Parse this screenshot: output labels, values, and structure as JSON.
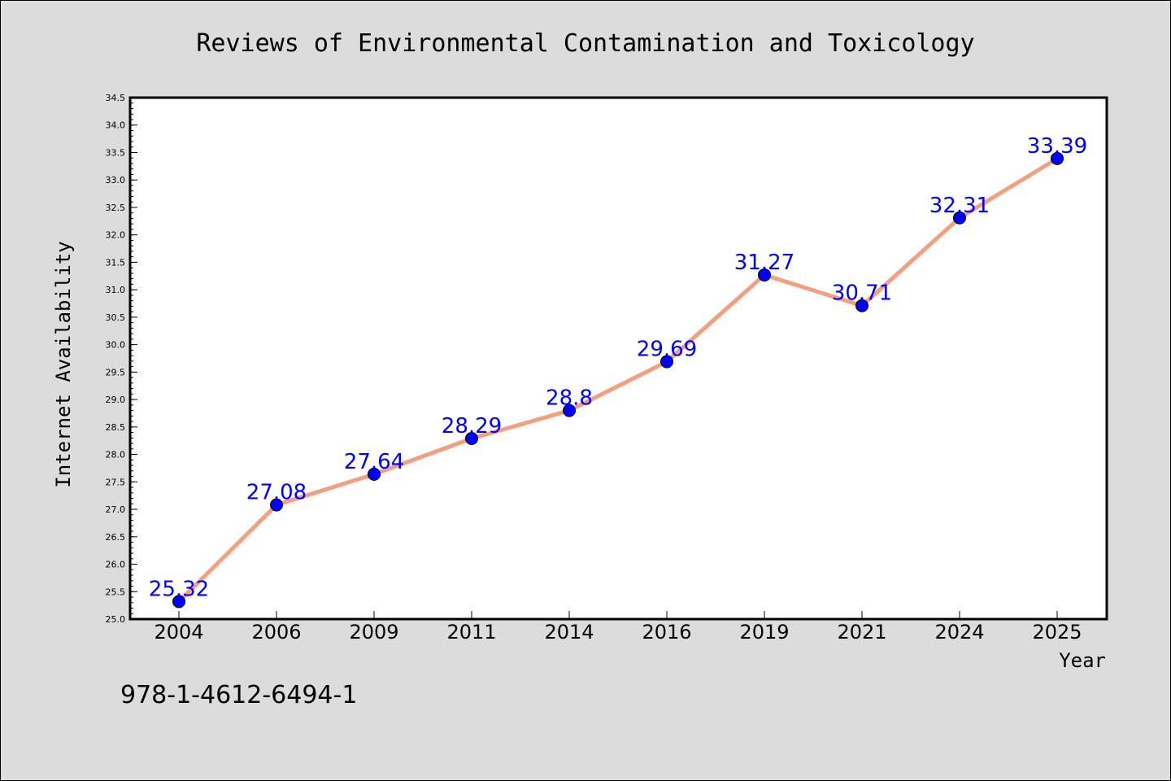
{
  "chart_data": {
    "type": "line",
    "title": "Reviews of Environmental Contamination and Toxicology",
    "xlabel": "Year",
    "ylabel": "Internet Availability",
    "categories": [
      "2004",
      "2006",
      "2009",
      "2011",
      "2014",
      "2016",
      "2019",
      "2021",
      "2024",
      "2025"
    ],
    "series": [
      {
        "values": [
          25.32,
          27.08,
          27.64,
          28.29,
          28.8,
          29.69,
          31.27,
          30.71,
          32.31,
          33.39
        ]
      }
    ],
    "data_labels": [
      "25.32",
      "27.08",
      "27.64",
      "28.29",
      "28.8",
      "29.69",
      "31.27",
      "30.71",
      "32.31",
      "33.39"
    ],
    "ylim": [
      25.0,
      34.5
    ],
    "yticks": [
      "25.0",
      "25.5",
      "26.0",
      "26.5",
      "27.0",
      "27.5",
      "28.0",
      "28.5",
      "29.0",
      "29.5",
      "30.0",
      "30.5",
      "31.0",
      "31.5",
      "32.0",
      "32.5",
      "33.0",
      "33.5",
      "34.0",
      "34.5"
    ],
    "grid": false,
    "legend": "none",
    "colors": {
      "line": "#f4a07e",
      "marker": "#0000ff",
      "data_label": "#0000ff",
      "plot_background": "#ffffff",
      "figure_background": "#dcdcdc"
    }
  },
  "footer": {
    "identifier": "978-1-4612-6494-1"
  }
}
